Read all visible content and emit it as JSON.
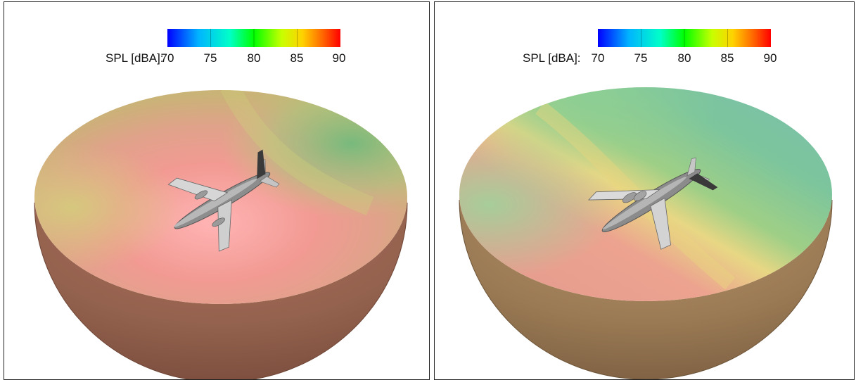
{
  "colorbar": {
    "title": "SPL [dBA]:",
    "ticks": [
      "70",
      "75",
      "80",
      "85",
      "90"
    ],
    "min": 70,
    "max": 90,
    "colors": [
      "#0000ff",
      "#00b4ff",
      "#00ffc8",
      "#00ff00",
      "#c8ff00",
      "#ffd200",
      "#ff6400",
      "#ff0000"
    ]
  },
  "panels": [
    {
      "name": "left",
      "dominant_field": "red-high"
    },
    {
      "name": "right",
      "dominant_field": "green-low"
    }
  ]
}
